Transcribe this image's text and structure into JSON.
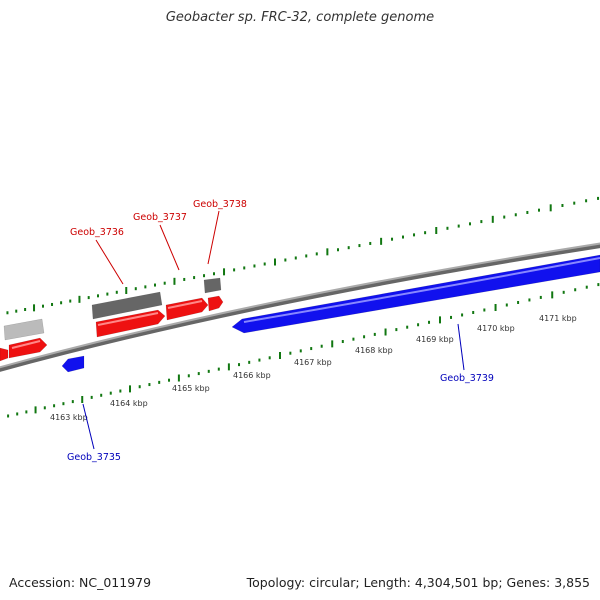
{
  "title": "Geobacter sp. FRC-32, complete genome",
  "footer": {
    "accession": "Accession: NC_011979",
    "topology": "Topology: circular; Length: 4,304,501 bp; Genes: 3,855"
  },
  "colors": {
    "forward_gene": "#ee1111",
    "reverse_gene": "#1111ee",
    "gray_feature": "#666666",
    "light_gray_feature": "#bbbbbb",
    "tick": "#117711",
    "backbone": "#888888",
    "forward_label": "#cc0000",
    "reverse_label": "#0000bb"
  },
  "scale_labels": [
    {
      "text": "4163 kbp",
      "kbp": 4163
    },
    {
      "text": "4164 kbp",
      "kbp": 4164
    },
    {
      "text": "4165 kbp",
      "kbp": 4165
    },
    {
      "text": "4166 kbp",
      "kbp": 4166
    },
    {
      "text": "4167 kbp",
      "kbp": 4167
    },
    {
      "text": "4168 kbp",
      "kbp": 4168
    },
    {
      "text": "4169 kbp",
      "kbp": 4169
    },
    {
      "text": "4170 kbp",
      "kbp": 4170
    },
    {
      "text": "4171 kbp",
      "kbp": 4171
    }
  ],
  "gene_labels": [
    {
      "text": "Geob_3736",
      "strand": "forward"
    },
    {
      "text": "Geob_3737",
      "strand": "forward"
    },
    {
      "text": "Geob_3738",
      "strand": "forward"
    },
    {
      "text": "Geob_3735",
      "strand": "reverse"
    },
    {
      "text": "Geob_3739",
      "strand": "reverse"
    }
  ]
}
